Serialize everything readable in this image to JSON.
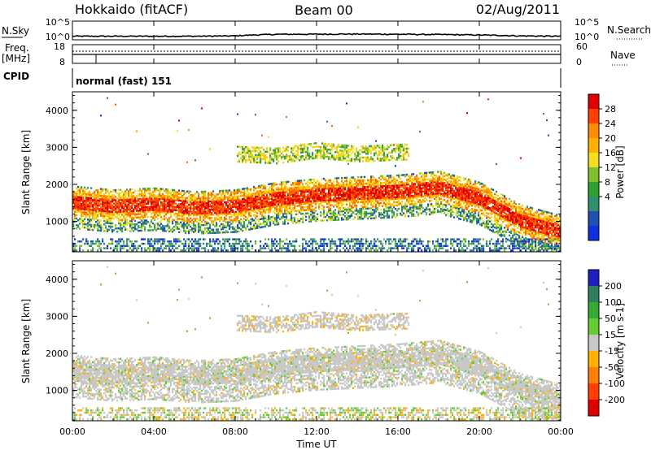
{
  "header": {
    "station": "Hokkaido (fitACF)",
    "beam": "Beam 00",
    "date": "02/Aug/2011"
  },
  "noise_panel": {
    "left_label": "N.Sky",
    "right_label": "N.Search",
    "left_ticks": [
      "10^5",
      "10^0"
    ],
    "right_ticks": [
      "10^5",
      "10^0"
    ]
  },
  "freq_panel": {
    "left_label_line1": "Freq.",
    "left_label_line2": "[MHz]",
    "left_ticks": [
      "18",
      "8"
    ],
    "right_label": "Nave",
    "right_ticks": [
      "60",
      "0"
    ]
  },
  "cpid_panel": {
    "label": "CPID",
    "value": "normal (fast) 151"
  },
  "power_panel": {
    "ylabel": "Slant Range [km]",
    "colorbar_label": "Power [dB]",
    "colorbar_ticks": [
      "28",
      "24",
      "20",
      "16",
      "12",
      "8",
      "4"
    ],
    "colorbar_colors": [
      "#e00000",
      "#ff4000",
      "#ff8c00",
      "#ffb000",
      "#f0e020",
      "#80c030",
      "#30a030",
      "#2f8f6f",
      "#2050b0",
      "#1030e0"
    ]
  },
  "velocity_panel": {
    "ylabel": "Slant Range [km]",
    "colorbar_label": "Velocity [m s-1]",
    "colorbar_ticks": [
      "200",
      "100",
      "50",
      "15",
      "-15",
      "-50",
      "-100",
      "-200"
    ],
    "colorbar_colors": [
      "#2020c0",
      "#2f7f5f",
      "#33aa33",
      "#66cc33",
      "#c8c8c8",
      "#ffb000",
      "#ff8000",
      "#ff4000",
      "#e00000"
    ]
  },
  "xaxis": {
    "label": "Time UT",
    "ticks": [
      "00:00",
      "04:00",
      "08:00",
      "12:00",
      "16:00",
      "20:00",
      "00:00"
    ]
  },
  "chart_data": [
    {
      "type": "line",
      "title": "Hokkaido (fitACF) Beam 00 02/Aug/2011",
      "x": [
        0,
        2,
        4,
        6,
        8,
        10,
        12,
        14,
        16,
        18,
        20,
        22,
        24
      ],
      "series": [
        {
          "name": "N.Sky",
          "values": [
            4,
            4,
            4,
            4,
            5,
            16,
            18,
            20,
            17,
            14,
            10,
            5,
            4
          ]
        }
      ],
      "xlim": [
        0,
        24
      ],
      "ylim": [
        1,
        100000
      ],
      "yscale": "log"
    },
    {
      "type": "line",
      "x": [
        0,
        24
      ],
      "series": [
        {
          "name": "Freq.",
          "values": [
            11,
            11
          ]
        }
      ],
      "xlim": [
        0,
        24
      ],
      "ylim": [
        8,
        18
      ]
    },
    {
      "type": "heatmap",
      "xlabel": "",
      "ylabel": "Slant Range [km]",
      "xlim": [
        0,
        24
      ],
      "ylim": [
        180,
        4500
      ],
      "colorbar": "Power [dB]",
      "clim": [
        0,
        30
      ],
      "main_band_center_km": {
        "x": [
          0,
          2,
          4,
          6,
          8,
          10,
          12,
          14,
          16,
          18,
          20,
          22,
          24
        ],
        "y": [
          1500,
          1400,
          1450,
          1350,
          1400,
          1600,
          1700,
          1750,
          1800,
          1900,
          1600,
          1000,
          700
        ]
      },
      "upper_band_center_km": {
        "x": [
          8,
          10,
          12,
          14,
          16
        ],
        "y": [
          2800,
          2750,
          2900,
          2800,
          2850
        ]
      }
    },
    {
      "type": "heatmap",
      "xlabel": "Time UT",
      "ylabel": "Slant Range [km]",
      "xlim": [
        0,
        24
      ],
      "ylim": [
        180,
        4500
      ],
      "colorbar": "Velocity [m s-1]",
      "clim": [
        -250,
        250
      ]
    }
  ]
}
